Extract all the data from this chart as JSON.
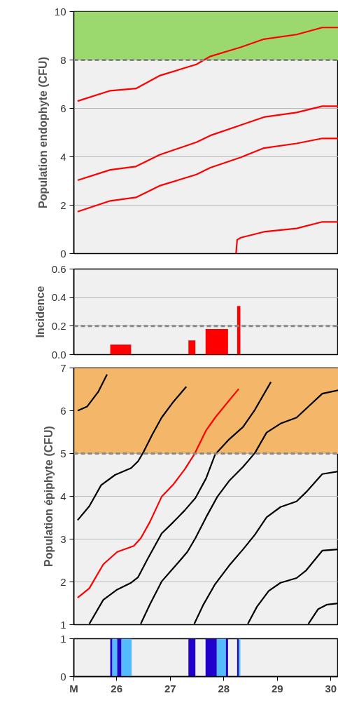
{
  "chart_data": [
    {
      "type": "line",
      "ylabel": "Population endophyte (CFU)",
      "xlim": [
        25.2,
        30.14
      ],
      "ylim": [
        0,
        10
      ],
      "yticks": [
        0,
        2,
        4,
        6,
        8,
        10
      ],
      "grid": "y",
      "tick_labels": "y",
      "bands": [
        {
          "axis": "y",
          "from": 8,
          "to": 10,
          "color": "#9bd86e"
        }
      ],
      "ref_lines": [
        {
          "axis": "y",
          "value": 8,
          "color": "#888888",
          "line_style": "dashed"
        }
      ],
      "series": [
        {
          "color": "#ff0000",
          "x": [
            25.27,
            25.88,
            26.36,
            26.8,
            27.49,
            27.75,
            28.32,
            28.75,
            29.36,
            29.84,
            30.14
          ],
          "values": [
            6.3,
            6.73,
            6.82,
            7.35,
            7.82,
            8.15,
            8.53,
            8.86,
            9.05,
            9.34,
            9.34
          ]
        },
        {
          "color": "#ff0000",
          "x": [
            25.27,
            25.88,
            26.36,
            26.8,
            27.49,
            27.75,
            28.32,
            28.75,
            29.36,
            29.84,
            30.14
          ],
          "values": [
            3.03,
            3.46,
            3.6,
            4.08,
            4.6,
            4.88,
            5.31,
            5.64,
            5.83,
            6.09,
            6.09
          ]
        },
        {
          "color": "#ff0000",
          "x": [
            25.27,
            25.88,
            26.36,
            26.8,
            27.49,
            27.75,
            28.32,
            28.75,
            29.36,
            29.84,
            30.14
          ],
          "values": [
            1.73,
            2.18,
            2.32,
            2.8,
            3.27,
            3.55,
            3.98,
            4.36,
            4.55,
            4.76,
            4.76
          ]
        },
        {
          "color": "#ff0000",
          "x": [
            28.23,
            28.25,
            28.32,
            28.75,
            29.36,
            29.84,
            30.14
          ],
          "values": [
            0,
            0.57,
            0.66,
            0.9,
            1.04,
            1.31,
            1.31
          ]
        }
      ]
    },
    {
      "type": "histogram",
      "ylabel": "Incidence",
      "xlim": [
        25.2,
        30.14
      ],
      "ylim": [
        0,
        0.6
      ],
      "yticks": [
        {
          "value": 0,
          "label": "0.0"
        },
        0.2,
        0.4,
        0.6
      ],
      "grid": "y",
      "tick_labels": "y",
      "color": "#ff0000",
      "ref_lines": [
        {
          "axis": "y",
          "value": 0.2,
          "color": "#888888",
          "line_style": "dashed"
        }
      ],
      "bins": [
        25.88,
        26.27,
        27.34,
        27.47,
        27.66,
        28.08,
        28.25,
        28.31
      ],
      "values": [
        0.07,
        null,
        0.1,
        null,
        0.18,
        null,
        0.34
      ]
    },
    {
      "type": "line",
      "ylabel": "Population épiphyte (CFU)",
      "xlim": [
        25.2,
        30.14
      ],
      "ylim": [
        1,
        7
      ],
      "yticks": [
        1,
        2,
        3,
        4,
        5,
        6,
        7
      ],
      "grid": "y",
      "tick_labels": "y",
      "bands": [
        {
          "axis": "y",
          "from": 5,
          "to": 7,
          "color": "#f4b76a"
        }
      ],
      "ref_lines": [
        {
          "axis": "y",
          "value": 5,
          "color": "#888888",
          "line_style": "dashed"
        }
      ],
      "series": [
        {
          "color": "#ff0000",
          "x": [
            25.27,
            25.49,
            25.75,
            26.01,
            26.32,
            26.45,
            26.62,
            26.84,
            27.06,
            27.27,
            27.45,
            27.67,
            27.84,
            28.1,
            28.28
          ],
          "values": [
            1.63,
            1.85,
            2.41,
            2.7,
            2.84,
            3.02,
            3.4,
            3.99,
            4.28,
            4.63,
            4.98,
            5.54,
            5.84,
            6.24,
            6.51
          ]
        },
        {
          "color": "#000000",
          "x": [
            25.27,
            25.45,
            25.66,
            25.82
          ],
          "values": [
            6.0,
            6.1,
            6.45,
            6.85
          ]
        },
        {
          "color": "#000000",
          "x": [
            25.27,
            25.49,
            25.71,
            25.97,
            26.27,
            26.4,
            26.49,
            26.66,
            26.84,
            27.06,
            27.3
          ],
          "values": [
            3.44,
            3.77,
            4.26,
            4.5,
            4.66,
            4.82,
            5.01,
            5.43,
            5.84,
            6.21,
            6.56
          ]
        },
        {
          "color": "#000000",
          "x": [
            25.49,
            25.75,
            26.01,
            26.27,
            26.4,
            26.58,
            26.84,
            27.06,
            27.27,
            27.47,
            27.67,
            27.84,
            28.1,
            28.36,
            28.58,
            28.88
          ],
          "values": [
            1.02,
            1.58,
            1.82,
            1.98,
            2.11,
            2.54,
            3.13,
            3.4,
            3.67,
            3.96,
            4.42,
            4.98,
            5.33,
            5.62,
            6.02,
            6.67
          ]
        },
        {
          "color": "#000000",
          "x": [
            26.45,
            26.62,
            26.84,
            27.1,
            27.32,
            27.47,
            27.67,
            27.88,
            28.1,
            28.36,
            28.58,
            28.8,
            29.06,
            29.36,
            29.54,
            29.84,
            30.14
          ],
          "values": [
            1.02,
            1.47,
            2.01,
            2.38,
            2.7,
            3.02,
            3.51,
            3.99,
            4.36,
            4.69,
            5.01,
            5.49,
            5.7,
            5.84,
            6.05,
            6.4,
            6.48
          ]
        },
        {
          "color": "#000000",
          "x": [
            27.45,
            27.62,
            27.84,
            28.1,
            28.36,
            28.58,
            28.8,
            29.06,
            29.36,
            29.54,
            29.84,
            30.14
          ],
          "values": [
            1.02,
            1.47,
            1.95,
            2.38,
            2.76,
            3.1,
            3.51,
            3.75,
            3.88,
            4.1,
            4.52,
            4.58
          ]
        },
        {
          "color": "#000000",
          "x": [
            28.45,
            28.62,
            28.84,
            29.06,
            29.36,
            29.54,
            29.84,
            30.14
          ],
          "values": [
            1.02,
            1.42,
            1.79,
            1.98,
            2.09,
            2.27,
            2.73,
            2.76
          ]
        },
        {
          "color": "#000000",
          "x": [
            29.58,
            29.76,
            29.93,
            30.14
          ],
          "values": [
            1.02,
            1.36,
            1.47,
            1.5
          ]
        }
      ]
    },
    {
      "type": "histogram",
      "xlim": [
        25.2,
        30.14
      ],
      "xticks": [
        {
          "value": 25.2,
          "label": "M"
        },
        26,
        27,
        28,
        29,
        30
      ],
      "ylim": [
        0,
        1
      ],
      "yticks": [
        0,
        1
      ],
      "bins": [
        25.88,
        25.92,
        26.01,
        26.09,
        26.28,
        27.34,
        27.47,
        27.66,
        27.87,
        28.04,
        28.08,
        28.25,
        28.28,
        28.31
      ],
      "values": [
        1,
        1,
        1,
        1,
        null,
        1,
        null,
        1,
        1,
        1,
        null,
        1,
        1
      ],
      "colors": [
        "#2200cc",
        "#55bbff",
        "#2200cc",
        "#55bbff",
        null,
        "#2200cc",
        null,
        "#2200cc",
        "#55bbff",
        "#2200cc",
        null,
        "#2200cc",
        "#55bbff"
      ]
    }
  ]
}
